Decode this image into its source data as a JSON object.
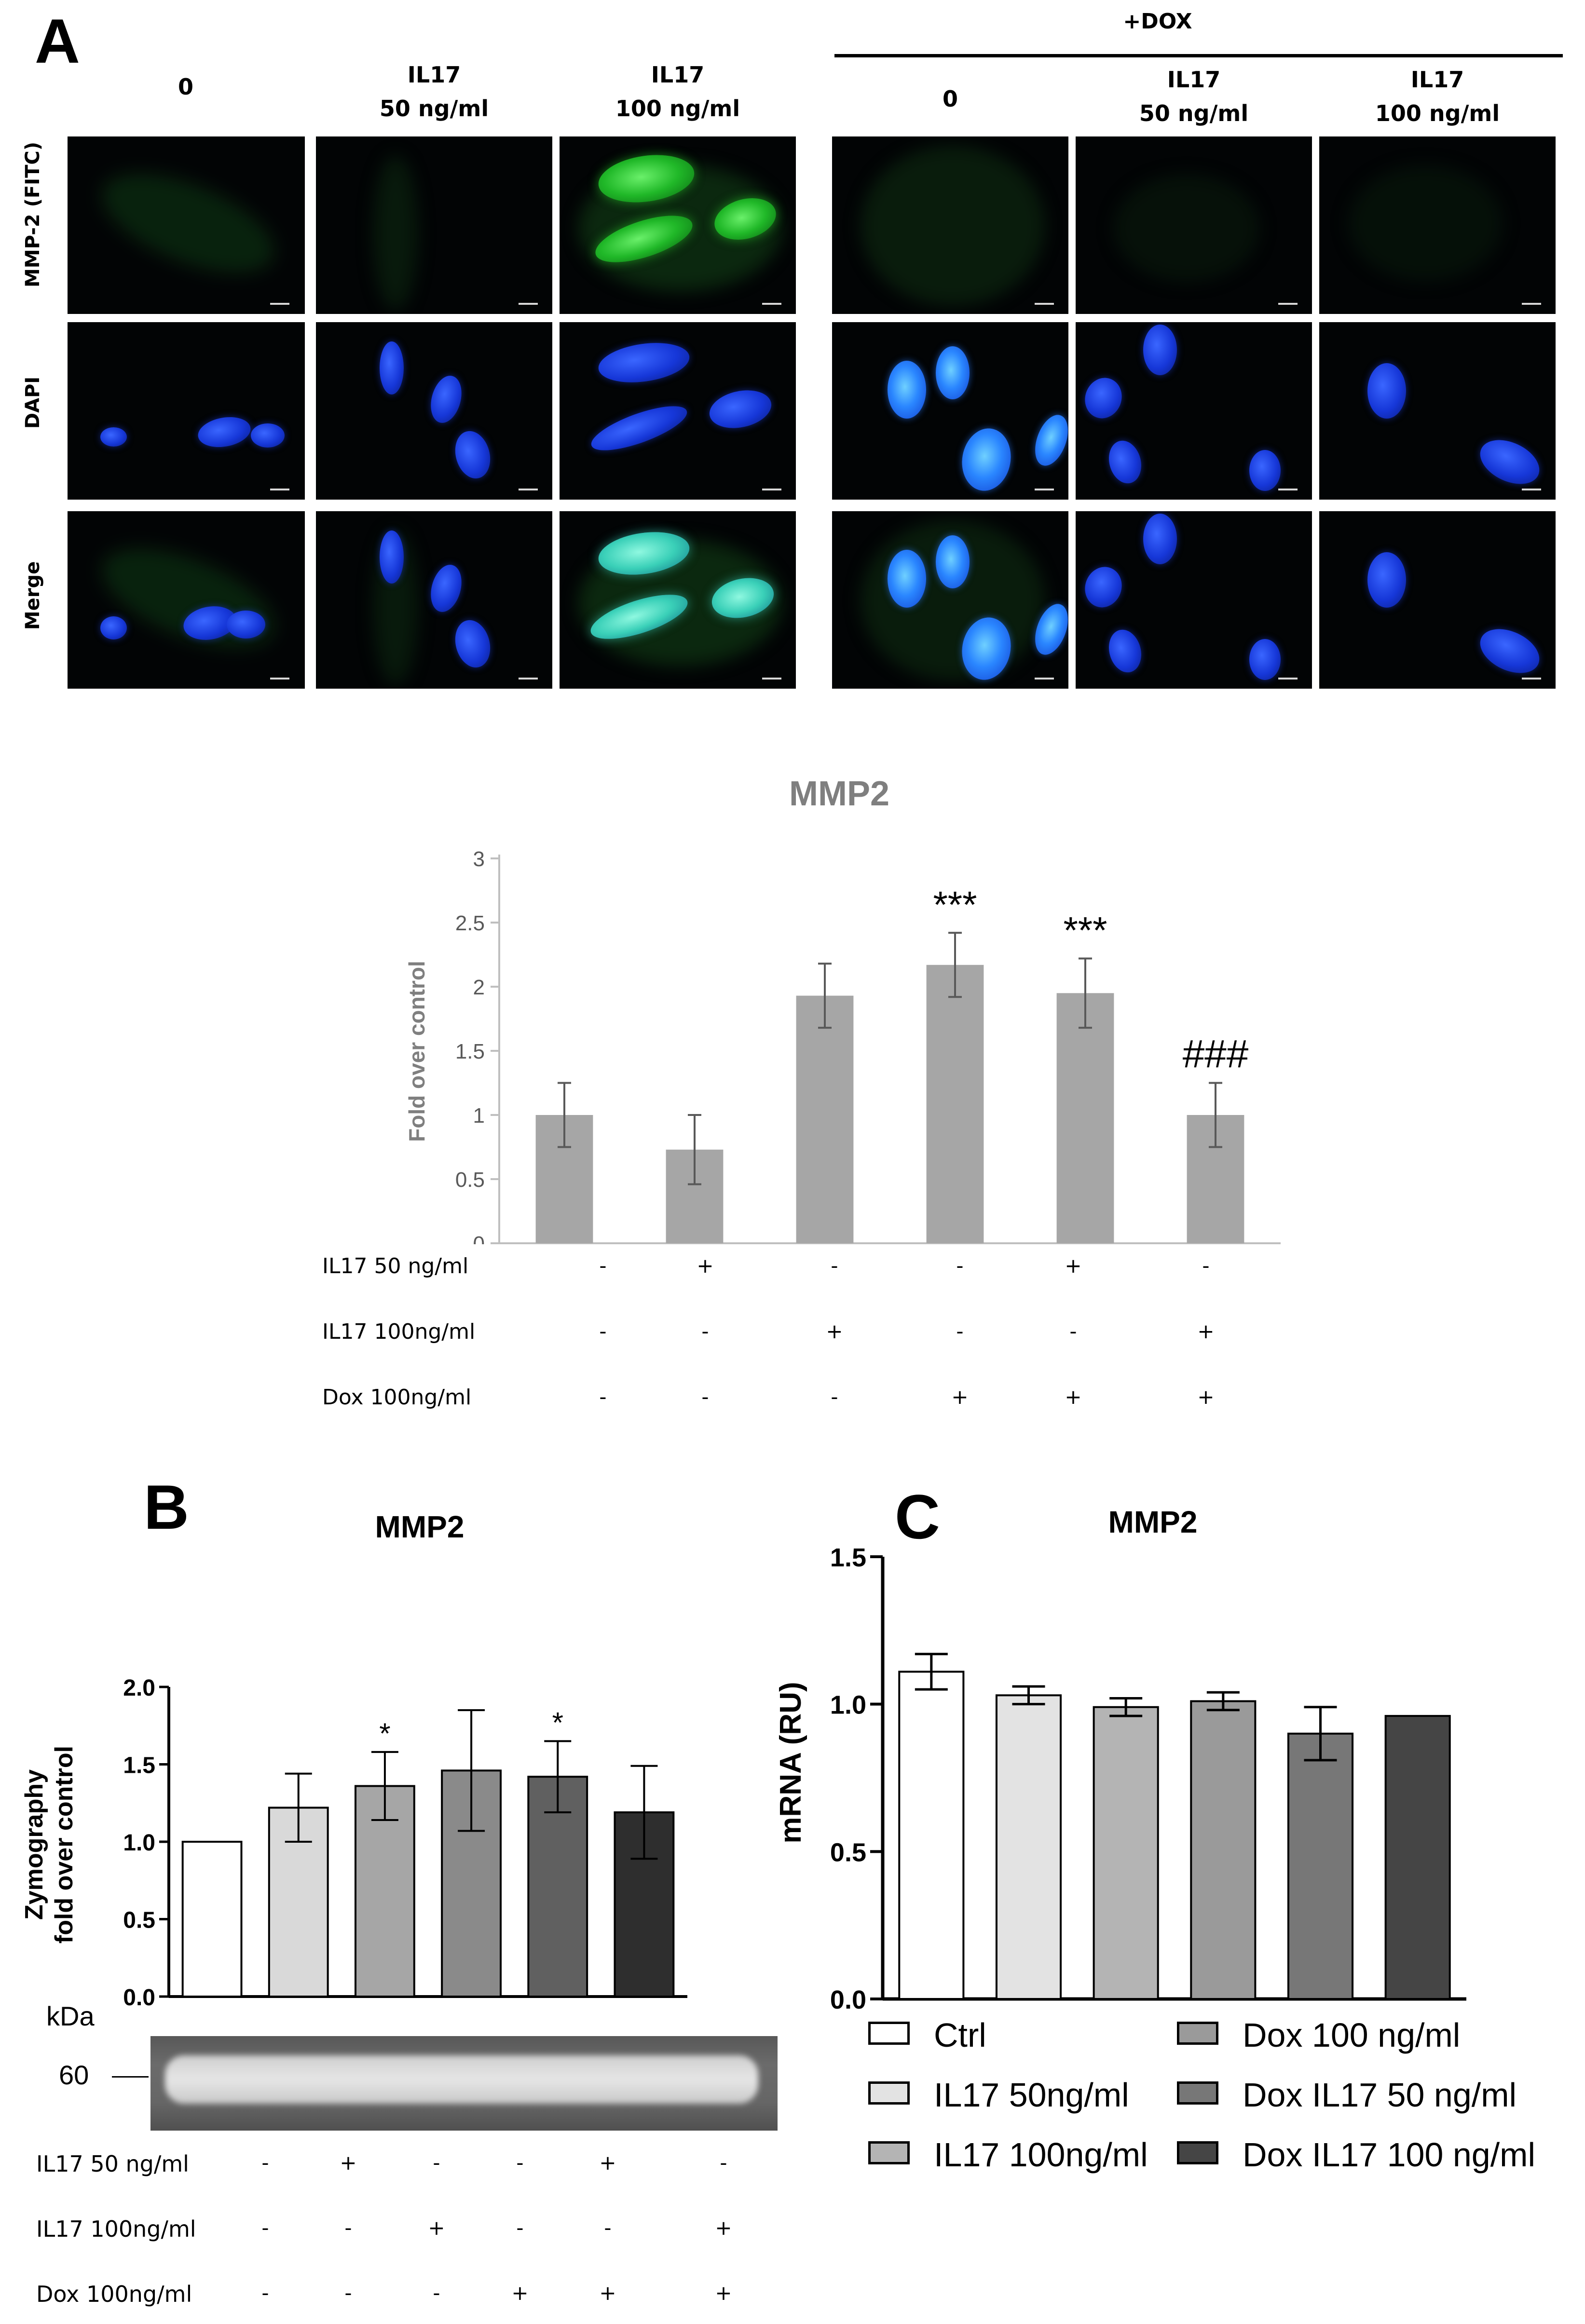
{
  "panels": {
    "a": "A",
    "b": "B",
    "c": "C"
  },
  "panelA": {
    "dox_header": "+DOX",
    "columns": [
      "0",
      "IL17\n50 ng/ml",
      "IL17\n100 ng/ml",
      "0",
      "IL17\n50 ng/ml",
      "IL17\n100 ng/ml"
    ],
    "rows": [
      "MMP-2 (FITC)",
      "DAPI",
      "Merge"
    ]
  },
  "chart_data": [
    {
      "type": "bar",
      "title": "MMP2",
      "ylabel": "Fold over control",
      "ylim": [
        0,
        3
      ],
      "yticks": [
        "0",
        "0.5",
        "1",
        "1.5",
        "2",
        "2.5",
        "3"
      ],
      "values": [
        1.0,
        0.73,
        1.93,
        2.17,
        1.95,
        1.0
      ],
      "errors": [
        0.25,
        0.27,
        0.25,
        0.25,
        0.27,
        0.25
      ],
      "annotations": [
        "",
        "",
        "",
        "***",
        "***",
        "###"
      ],
      "color": "#a6a6a6",
      "conditions": [
        {
          "label": "IL17 50 ng/ml",
          "signs": [
            "-",
            "+",
            "-",
            "-",
            "+",
            "-"
          ]
        },
        {
          "label": "IL17 100ng/ml",
          "signs": [
            "-",
            "-",
            "+",
            "-",
            "-",
            "+"
          ]
        },
        {
          "label": "Dox 100ng/ml",
          "signs": [
            "-",
            "-",
            "-",
            "+",
            "+",
            "+"
          ]
        }
      ]
    },
    {
      "type": "bar",
      "title": "MMP2",
      "ylabel": "Zymography\nfold over control",
      "ylim": [
        0,
        2
      ],
      "yticks": [
        "0.0",
        "0.5",
        "1.0",
        "1.5",
        "2.0"
      ],
      "values": [
        1.0,
        1.22,
        1.36,
        1.46,
        1.42,
        1.19
      ],
      "errors": [
        0,
        0.22,
        0.22,
        0.39,
        0.23,
        0.3
      ],
      "annotations": [
        "",
        "",
        "*",
        "",
        "*",
        ""
      ],
      "colors": [
        "#ffffff",
        "#d9d9d9",
        "#a6a6a6",
        "#8a8a8a",
        "#606060",
        "#2e2e2e"
      ],
      "blot_unit": "kDa",
      "blot_marker": "60",
      "conditions": [
        {
          "label": "IL17 50 ng/ml",
          "signs": [
            "-",
            "+",
            "-",
            "-",
            "+",
            "-"
          ]
        },
        {
          "label": "IL17 100ng/ml",
          "signs": [
            "-",
            "-",
            "+",
            "-",
            "-",
            "+"
          ]
        },
        {
          "label": "Dox 100ng/ml",
          "signs": [
            "-",
            "-",
            "-",
            "+",
            "+",
            "+"
          ]
        }
      ]
    },
    {
      "type": "bar",
      "title": "MMP2",
      "ylabel": "mRNA (RU)",
      "ylim": [
        0,
        1.5
      ],
      "yticks": [
        "0.0",
        "0.5",
        "1.0",
        "1.5"
      ],
      "values": [
        1.11,
        1.03,
        0.99,
        1.01,
        0.9,
        0.96
      ],
      "errors": [
        0.06,
        0.03,
        0.03,
        0.03,
        0.09,
        0.0
      ],
      "colors": [
        "#ffffff",
        "#e3e3e3",
        "#b4b4b4",
        "#9a9a9a",
        "#777777",
        "#454545"
      ],
      "legend": [
        "Ctrl",
        "IL17 50ng/ml",
        "IL17 100ng/ml",
        "Dox 100 ng/ml",
        "Dox IL17 50 ng/ml",
        "Dox IL17 100 ng/ml"
      ]
    }
  ]
}
